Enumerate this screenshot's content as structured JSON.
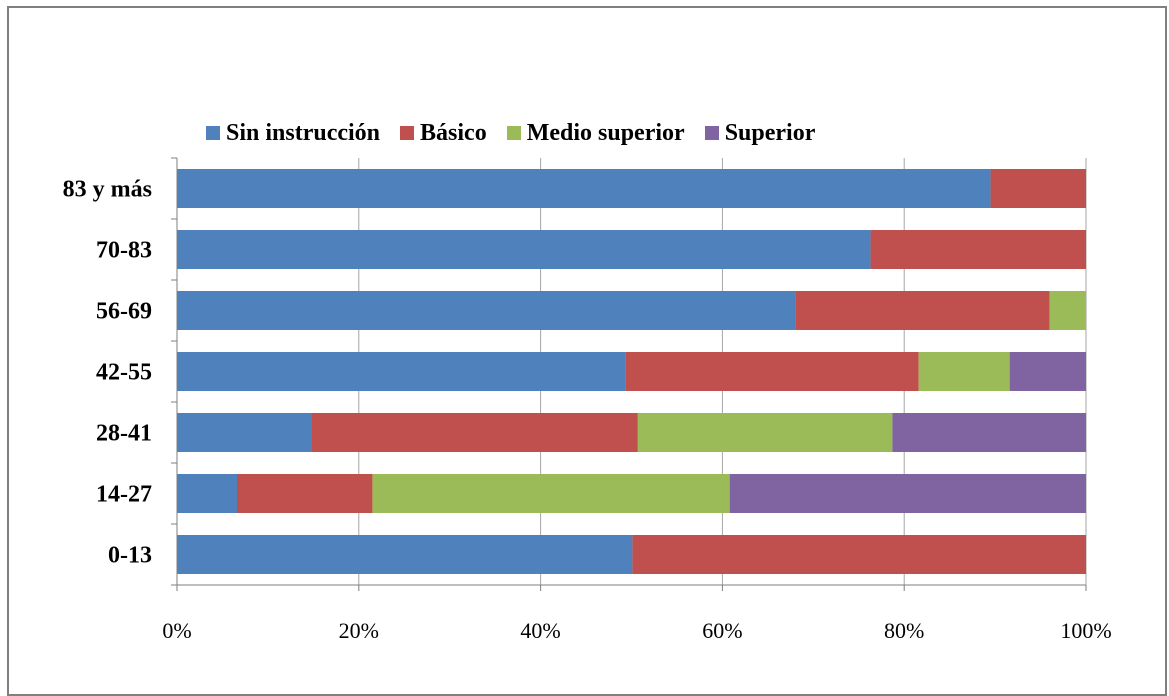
{
  "chart_data": {
    "type": "bar",
    "orientation": "horizontal",
    "stacked": "percent",
    "title": "",
    "categories": [
      "83 y más",
      "70-83",
      "56-69",
      "42-55",
      "28-41",
      "14-27",
      "0-13"
    ],
    "series": [
      {
        "name": "Sin instrucción",
        "color": "#4f81bd",
        "values": [
          89.5,
          76.3,
          68.0,
          49.3,
          14.8,
          6.6,
          50.1
        ]
      },
      {
        "name": "Básico",
        "color": "#c0504d",
        "values": [
          10.5,
          23.7,
          28.0,
          32.3,
          35.9,
          14.9,
          49.9
        ]
      },
      {
        "name": "Medio superior",
        "color": "#9bbb59",
        "values": [
          0,
          0,
          4.0,
          10.0,
          28.0,
          39.3,
          0
        ]
      },
      {
        "name": "Superior",
        "color": "#8064a2",
        "values": [
          0,
          0,
          0,
          8.4,
          21.3,
          39.2,
          0
        ]
      }
    ],
    "x_ticks": [
      "0%",
      "20%",
      "40%",
      "60%",
      "80%",
      "100%"
    ],
    "xlim": [
      0,
      100
    ],
    "grid": "vertical",
    "legend_position": "top"
  }
}
